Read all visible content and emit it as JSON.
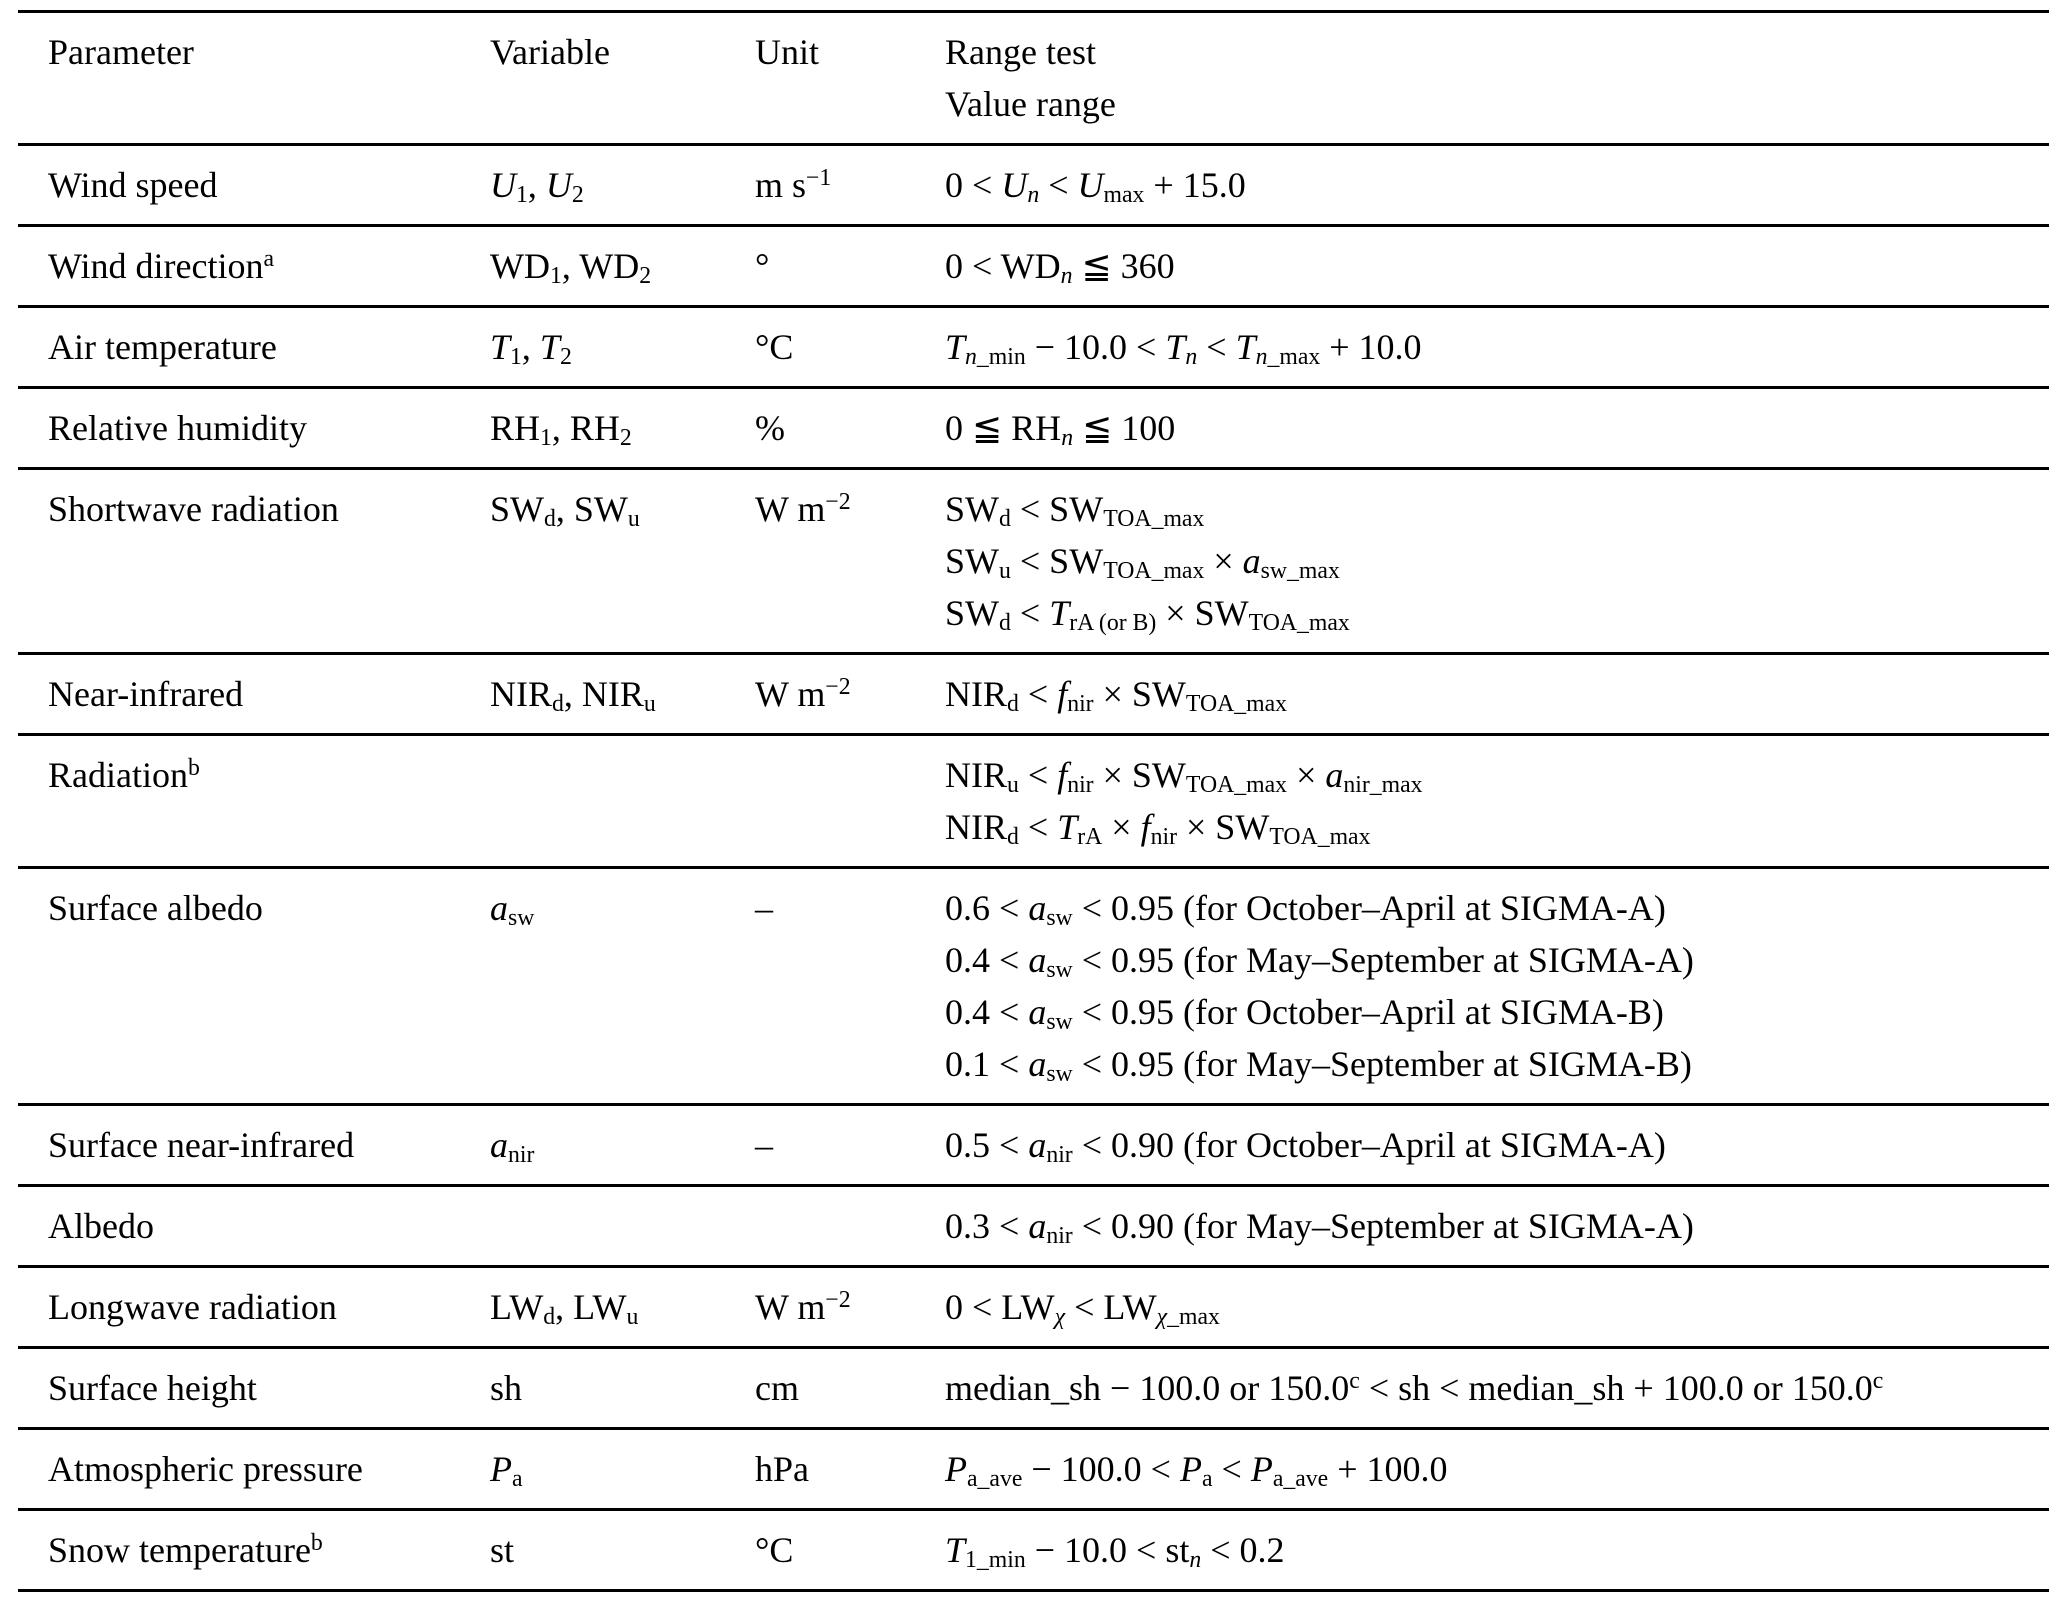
{
  "colors": {
    "background": "#ffffff",
    "text": "#000000",
    "rule": "#000000"
  },
  "table": {
    "header": {
      "parameter": "Parameter",
      "variable": "Variable",
      "unit": "Unit",
      "range_test_line1": "Range test",
      "range_test_line2": "Value range"
    },
    "rows": [
      {
        "parameter": "Wind speed",
        "variable": "*U*_{1}, *U*_{2}",
        "unit": "m s^{−1}",
        "tests": [
          "0 < *U*_{*n*} < *U*_{max} + 15.0"
        ]
      },
      {
        "parameter": "Wind direction^{a}",
        "variable": "WD_{1}, WD_{2}",
        "unit": "°",
        "tests": [
          "0 < WD_{*n*} ≦ 360"
        ]
      },
      {
        "parameter": "Air temperature",
        "variable": "*T*_{1}, *T*_{2}",
        "unit": "°C",
        "tests": [
          "*T*_{*n*_min} − 10.0 < *T*_{*n*} < *T*_{*n*_max} + 10.0"
        ]
      },
      {
        "parameter": "Relative humidity",
        "variable": "RH_{1}, RH_{2}",
        "unit": "%",
        "tests": [
          "0 ≦ RH_{*n*} ≦ 100"
        ]
      },
      {
        "parameter": "Shortwave radiation",
        "variable": "SW_{d}, SW_{u}",
        "unit": "W m^{−2}",
        "tests": [
          "SW_{d} < SW_{TOA_max}",
          "SW_{u} < SW_{TOA_max} × *a*_{sw_max}",
          "SW_{d} < *T*_{rA (or B)} × SW_{TOA_max}"
        ]
      },
      {
        "parameter": "Near-infrared",
        "variable": "NIR_{d}, NIR_{u}",
        "unit": "W m^{−2}",
        "tests": [
          "NIR_{d} < *f*_{nir} × SW_{TOA_max}"
        ]
      },
      {
        "parameter": "Radiation^{b}",
        "variable": "",
        "unit": "",
        "tests": [
          "NIR_{u} < *f*_{nir} × SW_{TOA_max} × *a*_{nir_max}",
          "NIR_{d} < *T*_{rA} × *f*_{nir} × SW_{TOA_max}"
        ]
      },
      {
        "parameter": "Surface albedo",
        "variable": "*a*_{sw}",
        "unit": "–",
        "tests": [
          "0.6 < *a*_{sw} < 0.95 (for October–April at SIGMA-A)",
          "0.4 < *a*_{sw} < 0.95 (for May–September at SIGMA-A)",
          "0.4 < *a*_{sw} < 0.95 (for October–April at SIGMA-B)",
          "0.1 < *a*_{sw} < 0.95 (for May–September at SIGMA-B)"
        ]
      },
      {
        "parameter": "Surface near-infrared",
        "variable": "*a*_{nir}",
        "unit": "–",
        "tests": [
          "0.5 < *a*_{nir} < 0.90 (for October–April at SIGMA-A)"
        ]
      },
      {
        "parameter": "Albedo",
        "variable": "",
        "unit": "",
        "tests": [
          "0.3 < *a*_{nir} < 0.90 (for May–September at SIGMA-A)"
        ]
      },
      {
        "parameter": "Longwave radiation",
        "variable": "LW_{d}, LW_{u}",
        "unit": "W m^{−2}",
        "tests": [
          "0 < LW_{*χ*} < LW_{*χ*_max}"
        ]
      },
      {
        "parameter": "Surface height",
        "variable": "sh",
        "unit": "cm",
        "tests": [
          "median_sh − 100.0 or 150.0^{c} < sh < median_sh + 100.0 or 150.0^{c}"
        ]
      },
      {
        "parameter": "Atmospheric pressure",
        "variable": "*P*_{a}",
        "unit": "hPa",
        "tests": [
          "*P*_{a_ave} − 100.0 < *P*_{a} < *P*_{a_ave} + 100.0"
        ]
      },
      {
        "parameter": "Snow temperature^{b}",
        "variable": "st",
        "unit": "°C",
        "tests": [
          "*T*_{1_min} − 10.0 < st_{*n*} < 0.2"
        ]
      }
    ]
  }
}
